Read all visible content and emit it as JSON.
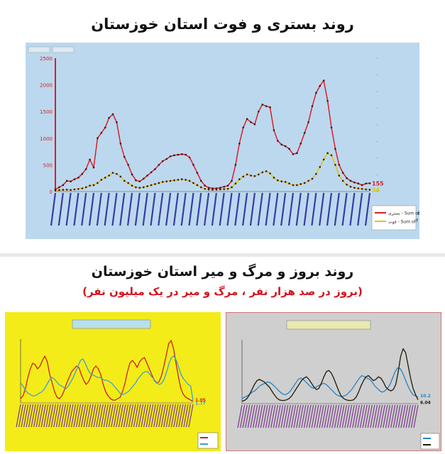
{
  "titles": {
    "main": "روند بستری و فوت استان خوزستان",
    "second": "روند بروز و مرگ و میر استان خوزستان",
    "subtitle": "(بروز در صد هزار نفر ، مرگ و میر در یک میلیون نفر)"
  },
  "colors": {
    "hospitalized": "#d4202a",
    "deaths": "#d9c410",
    "incidence": "#cc1f24",
    "mortality": "#3b9fd6",
    "incidence_p3": "#2a83c2",
    "mortality_p3": "#1a1a0a"
  },
  "chart_data": [
    {
      "type": "line",
      "title": "",
      "xlabel": "",
      "ylabel": "",
      "ylim": [
        0,
        2500
      ],
      "yticks": [
        "0",
        "500",
        "1000",
        "1500",
        "2000",
        "2500"
      ],
      "grid": false,
      "legend_position": "right",
      "series": [
        {
          "name": "بستری - Sum of",
          "color": "#d4202a",
          "end_label": "155",
          "values": [
            40,
            80,
            120,
            200,
            190,
            230,
            260,
            330,
            420,
            600,
            450,
            1000,
            1100,
            1200,
            1380,
            1450,
            1300,
            900,
            650,
            500,
            320,
            210,
            190,
            240,
            300,
            360,
            420,
            500,
            570,
            610,
            660,
            680,
            690,
            700,
            690,
            640,
            500,
            350,
            200,
            110,
            70,
            60,
            60,
            70,
            90,
            110,
            200,
            500,
            900,
            1200,
            1360,
            1300,
            1260,
            1500,
            1630,
            1600,
            1580,
            1150,
            950,
            880,
            850,
            800,
            700,
            720,
            900,
            1100,
            1300,
            1600,
            1850,
            1980,
            2080,
            1700,
            1200,
            800,
            500,
            350,
            250,
            200,
            170,
            150,
            120,
            150,
            155
          ]
        },
        {
          "name": "فوت - Sum of",
          "color": "#d9c410",
          "end_label": "34",
          "values": [
            20,
            28,
            32,
            35,
            30,
            40,
            48,
            60,
            80,
            110,
            120,
            160,
            220,
            260,
            300,
            350,
            330,
            280,
            200,
            160,
            110,
            80,
            70,
            80,
            100,
            120,
            140,
            160,
            180,
            190,
            200,
            210,
            220,
            230,
            220,
            200,
            160,
            120,
            80,
            50,
            38,
            34,
            35,
            40,
            45,
            50,
            80,
            150,
            230,
            280,
            320,
            300,
            290,
            320,
            360,
            380,
            340,
            260,
            210,
            190,
            180,
            150,
            120,
            120,
            140,
            160,
            200,
            240,
            330,
            460,
            600,
            720,
            680,
            500,
            300,
            200,
            130,
            90,
            70,
            60,
            50,
            40,
            34
          ]
        }
      ],
      "secondary_axis": {
        "ylim": [
          0,
          1600
        ]
      }
    },
    {
      "type": "line",
      "title": "",
      "xlabel": "",
      "ylabel": "",
      "ylim": [
        0,
        45
      ],
      "grid": false,
      "legend_position": "bottom-left",
      "series": [
        {
          "name": "",
          "color": "#cc1f24",
          "end_label": "1.05",
          "values": [
            3,
            5,
            10,
            18,
            24,
            28,
            27,
            24,
            26,
            30,
            33,
            29,
            20,
            14,
            8,
            4,
            3,
            5,
            9,
            14,
            18,
            22,
            24,
            26,
            25,
            20,
            16,
            13,
            15,
            19,
            24,
            26,
            24,
            20,
            13,
            8,
            5,
            3,
            2,
            2,
            3,
            4,
            8,
            14,
            22,
            28,
            30,
            28,
            25,
            29,
            31,
            32,
            28,
            24,
            20,
            16,
            14,
            15,
            19,
            26,
            34,
            42,
            44,
            38,
            28,
            18,
            10,
            6,
            4,
            3,
            2,
            1.05
          ]
        },
        {
          "name": "",
          "color": "#3b9fd6",
          "end_label": "1.77",
          "values": [
            14,
            12,
            9,
            7,
            6,
            5,
            5,
            6,
            7,
            8,
            10,
            13,
            16,
            18,
            17,
            15,
            13,
            12,
            11,
            10,
            12,
            15,
            18,
            22,
            26,
            30,
            31,
            28,
            24,
            21,
            20,
            19,
            18,
            18,
            17,
            16,
            16,
            15,
            14,
            12,
            10,
            8,
            6,
            6,
            7,
            8,
            10,
            12,
            14,
            17,
            19,
            21,
            22,
            22,
            20,
            18,
            16,
            14,
            13,
            14,
            17,
            22,
            28,
            32,
            33,
            30,
            25,
            20,
            17,
            15,
            13,
            12,
            1.77
          ]
        }
      ]
    },
    {
      "type": "line",
      "title": "",
      "xlabel": "",
      "ylabel": "",
      "ylim": [
        0,
        100
      ],
      "grid": false,
      "legend_position": "bottom-left",
      "series": [
        {
          "name": "",
          "color": "#2a83c2",
          "end_label": "10.2",
          "values": [
            8,
            10,
            12,
            15,
            18,
            20,
            24,
            28,
            30,
            32,
            34,
            33,
            30,
            26,
            22,
            18,
            15,
            14,
            16,
            20,
            26,
            32,
            38,
            40,
            38,
            34,
            30,
            26,
            24,
            26,
            28,
            30,
            32,
            30,
            26,
            22,
            18,
            14,
            12,
            11,
            12,
            14,
            18,
            22,
            28,
            34,
            40,
            44,
            42,
            40,
            38,
            34,
            28,
            24,
            20,
            18,
            20,
            24,
            30,
            40,
            50,
            56,
            55,
            48,
            38,
            28,
            20,
            14,
            12,
            10.2
          ]
        },
        {
          "name": "",
          "color": "#1a1a0a",
          "end_label": "6.04",
          "values": [
            4,
            5,
            8,
            14,
            22,
            30,
            36,
            38,
            36,
            34,
            30,
            26,
            20,
            14,
            9,
            6,
            5,
            5,
            6,
            8,
            12,
            18,
            24,
            30,
            36,
            40,
            42,
            38,
            32,
            26,
            22,
            24,
            32,
            42,
            50,
            52,
            48,
            40,
            30,
            20,
            12,
            8,
            6,
            5,
            5,
            6,
            10,
            18,
            28,
            36,
            42,
            44,
            40,
            36,
            38,
            42,
            40,
            34,
            26,
            22,
            20,
            22,
            30,
            50,
            74,
            86,
            80,
            60,
            40,
            24,
            14,
            6.04
          ]
        }
      ]
    }
  ]
}
